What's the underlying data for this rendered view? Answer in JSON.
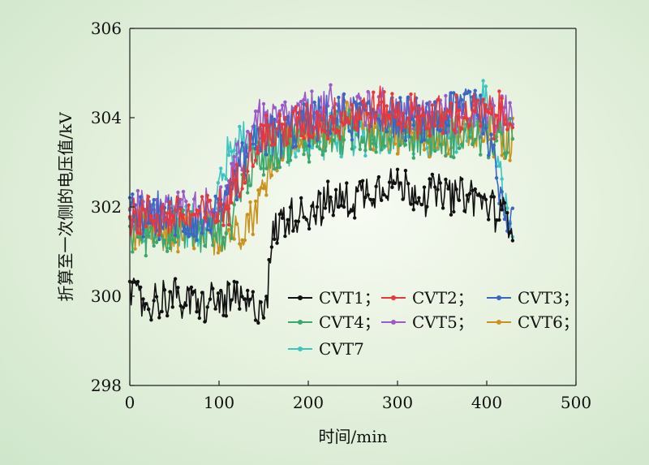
{
  "chart_data": {
    "type": "line",
    "title": "",
    "xlabel": "时间/min",
    "ylabel": "折算至一次侧的电压值/kV",
    "xlim": [
      0,
      500
    ],
    "ylim": [
      298,
      306
    ],
    "x_ticks": [
      "0",
      "100",
      "200",
      "300",
      "400",
      "500"
    ],
    "y_ticks": [
      "298",
      "300",
      "302",
      "304",
      "306"
    ],
    "grid": false,
    "legend_position": "inside-lower-center",
    "x_range": [
      0,
      430
    ],
    "series": [
      {
        "name": "CVT1；",
        "color": "#111111",
        "marker": "dot",
        "points": [
          [
            0,
            300.0
          ],
          [
            20,
            299.8
          ],
          [
            40,
            300.0
          ],
          [
            60,
            299.9
          ],
          [
            80,
            299.8
          ],
          [
            100,
            299.9
          ],
          [
            120,
            299.9
          ],
          [
            140,
            299.7
          ],
          [
            150,
            299.9
          ],
          [
            155,
            300.2
          ],
          [
            160,
            301.3
          ],
          [
            170,
            301.7
          ],
          [
            190,
            301.9
          ],
          [
            210,
            302.0
          ],
          [
            230,
            302.1
          ],
          [
            250,
            302.2
          ],
          [
            270,
            302.4
          ],
          [
            290,
            302.6
          ],
          [
            310,
            302.4
          ],
          [
            330,
            302.3
          ],
          [
            350,
            302.3
          ],
          [
            370,
            302.2
          ],
          [
            390,
            302.2
          ],
          [
            410,
            301.9
          ],
          [
            430,
            301.7
          ]
        ]
      },
      {
        "name": "CVT2；",
        "color": "#e8383b",
        "marker": "dot",
        "points": [
          [
            0,
            301.8
          ],
          [
            40,
            301.8
          ],
          [
            80,
            301.8
          ],
          [
            100,
            301.9
          ],
          [
            110,
            302.1
          ],
          [
            120,
            302.6
          ],
          [
            130,
            303.1
          ],
          [
            150,
            303.6
          ],
          [
            170,
            303.7
          ],
          [
            200,
            303.9
          ],
          [
            230,
            304.0
          ],
          [
            260,
            304.1
          ],
          [
            280,
            304.2
          ],
          [
            300,
            304.1
          ],
          [
            330,
            304.0
          ],
          [
            360,
            304.0
          ],
          [
            390,
            304.1
          ],
          [
            410,
            304.0
          ],
          [
            430,
            304.2
          ]
        ]
      },
      {
        "name": "CVT3；",
        "color": "#3a67c4",
        "marker": "dot",
        "points": [
          [
            0,
            301.8
          ],
          [
            40,
            301.8
          ],
          [
            80,
            301.7
          ],
          [
            100,
            301.8
          ],
          [
            110,
            302.0
          ],
          [
            120,
            302.7
          ],
          [
            130,
            303.2
          ],
          [
            150,
            303.6
          ],
          [
            170,
            303.6
          ],
          [
            200,
            303.9
          ],
          [
            230,
            304.0
          ],
          [
            260,
            304.0
          ],
          [
            290,
            304.1
          ],
          [
            320,
            303.9
          ],
          [
            350,
            304.0
          ],
          [
            370,
            304.3
          ],
          [
            385,
            304.6
          ],
          [
            400,
            303.8
          ],
          [
            415,
            302.3
          ],
          [
            425,
            301.8
          ],
          [
            430,
            302.0
          ]
        ]
      },
      {
        "name": "CVT4；",
        "color": "#3aa86b",
        "marker": "dot",
        "points": [
          [
            0,
            301.4
          ],
          [
            40,
            301.5
          ],
          [
            80,
            301.4
          ],
          [
            100,
            301.4
          ],
          [
            110,
            301.6
          ],
          [
            120,
            302.2
          ],
          [
            130,
            302.7
          ],
          [
            150,
            303.2
          ],
          [
            170,
            303.4
          ],
          [
            200,
            303.5
          ],
          [
            230,
            303.6
          ],
          [
            260,
            303.7
          ],
          [
            290,
            303.7
          ],
          [
            320,
            303.6
          ],
          [
            350,
            303.6
          ],
          [
            380,
            303.7
          ],
          [
            410,
            303.4
          ],
          [
            430,
            303.6
          ]
        ]
      },
      {
        "name": "CVT5；",
        "color": "#9a5bc8",
        "marker": "dot",
        "points": [
          [
            0,
            301.9
          ],
          [
            40,
            301.9
          ],
          [
            80,
            301.9
          ],
          [
            100,
            302.0
          ],
          [
            110,
            302.2
          ],
          [
            120,
            302.9
          ],
          [
            130,
            303.4
          ],
          [
            140,
            304.0
          ],
          [
            160,
            303.9
          ],
          [
            200,
            304.1
          ],
          [
            230,
            304.2
          ],
          [
            260,
            304.2
          ],
          [
            290,
            304.1
          ],
          [
            320,
            304.0
          ],
          [
            350,
            304.0
          ],
          [
            380,
            304.1
          ],
          [
            410,
            303.9
          ],
          [
            430,
            304.2
          ]
        ]
      },
      {
        "name": "CVT6；",
        "color": "#c8921c",
        "marker": "dot",
        "points": [
          [
            0,
            301.5
          ],
          [
            40,
            301.4
          ],
          [
            80,
            301.4
          ],
          [
            100,
            301.4
          ],
          [
            120,
            301.5
          ],
          [
            140,
            301.9
          ],
          [
            150,
            302.4
          ],
          [
            160,
            303.2
          ],
          [
            180,
            303.5
          ],
          [
            200,
            303.7
          ],
          [
            230,
            303.8
          ],
          [
            260,
            303.8
          ],
          [
            290,
            303.7
          ],
          [
            320,
            303.6
          ],
          [
            350,
            303.7
          ],
          [
            380,
            303.6
          ],
          [
            410,
            303.5
          ],
          [
            430,
            303.5
          ]
        ]
      },
      {
        "name": "CVT7",
        "color": "#3cc4c0",
        "marker": "dot",
        "points": [
          [
            0,
            301.6
          ],
          [
            40,
            301.6
          ],
          [
            80,
            301.6
          ],
          [
            95,
            301.6
          ],
          [
            100,
            302.6
          ],
          [
            110,
            303.1
          ],
          [
            120,
            303.5
          ],
          [
            140,
            303.6
          ],
          [
            160,
            303.5
          ],
          [
            180,
            303.4
          ],
          [
            210,
            303.6
          ],
          [
            240,
            303.6
          ],
          [
            270,
            303.7
          ],
          [
            300,
            303.6
          ],
          [
            330,
            303.5
          ],
          [
            360,
            303.6
          ],
          [
            385,
            303.9
          ],
          [
            395,
            304.6
          ],
          [
            405,
            304.0
          ],
          [
            415,
            302.6
          ],
          [
            425,
            301.6
          ],
          [
            430,
            301.5
          ]
        ]
      }
    ]
  }
}
